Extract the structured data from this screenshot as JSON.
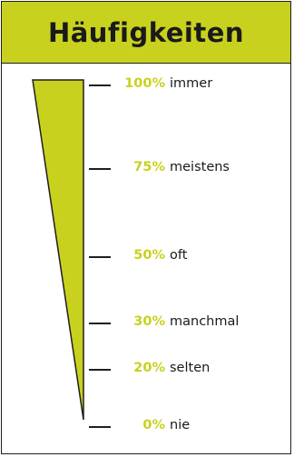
{
  "title": "Häufigkeiten",
  "colors": {
    "accent": "#c8d11e",
    "ink": "#1f1f1f"
  },
  "levels": [
    {
      "percent": "100%",
      "label": "immer",
      "value": 100
    },
    {
      "percent": "75%",
      "label": "meistens",
      "value": 75
    },
    {
      "percent": "50%",
      "label": "oft",
      "value": 50
    },
    {
      "percent": "30%",
      "label": "manchmal",
      "value": 30
    },
    {
      "percent": "20%",
      "label": "selten",
      "value": 20
    },
    {
      "percent": "0%",
      "label": "nie",
      "value": 0
    }
  ]
}
